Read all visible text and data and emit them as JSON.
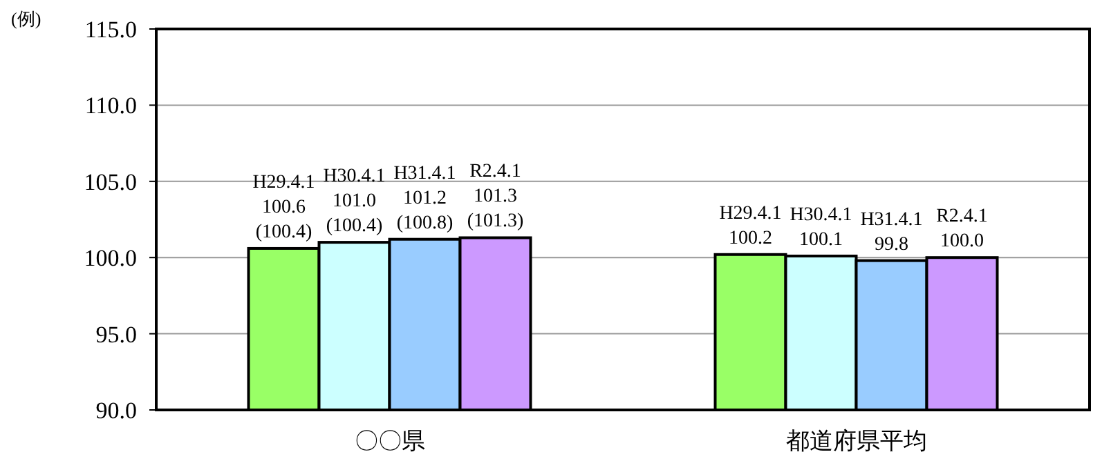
{
  "chart_data": {
    "type": "bar",
    "ylabel": "(例)",
    "categories": [
      "〇〇県",
      "都道府県平均"
    ],
    "series": [
      {
        "name": "H29.4.1",
        "color": "#99ff66",
        "values": [
          100.6,
          100.2
        ],
        "value_labels": [
          "100.6\n(100.4)",
          "100.2"
        ]
      },
      {
        "name": "H30.4.1",
        "color": "#ccffff",
        "values": [
          101.0,
          100.1
        ],
        "value_labels": [
          "101.0\n(100.4)",
          "100.1"
        ]
      },
      {
        "name": "H31.4.1",
        "color": "#99ccff",
        "values": [
          101.2,
          99.8
        ],
        "value_labels": [
          "101.2\n(100.8)",
          "99.8"
        ]
      },
      {
        "name": "R2.4.1",
        "color": "#cc99ff",
        "values": [
          101.3,
          100.0
        ],
        "value_labels": [
          "101.3\n(101.3)",
          "100.0"
        ]
      }
    ],
    "ylim": [
      90,
      115
    ],
    "yticks": [
      {
        "value": 90,
        "label": "90.0"
      },
      {
        "value": 95,
        "label": "95.0"
      },
      {
        "value": 100,
        "label": "100.0"
      },
      {
        "value": 105,
        "label": "105.0"
      },
      {
        "value": 110,
        "label": "110.0"
      },
      {
        "value": 115,
        "label": "115.0"
      }
    ],
    "grid": "y"
  }
}
